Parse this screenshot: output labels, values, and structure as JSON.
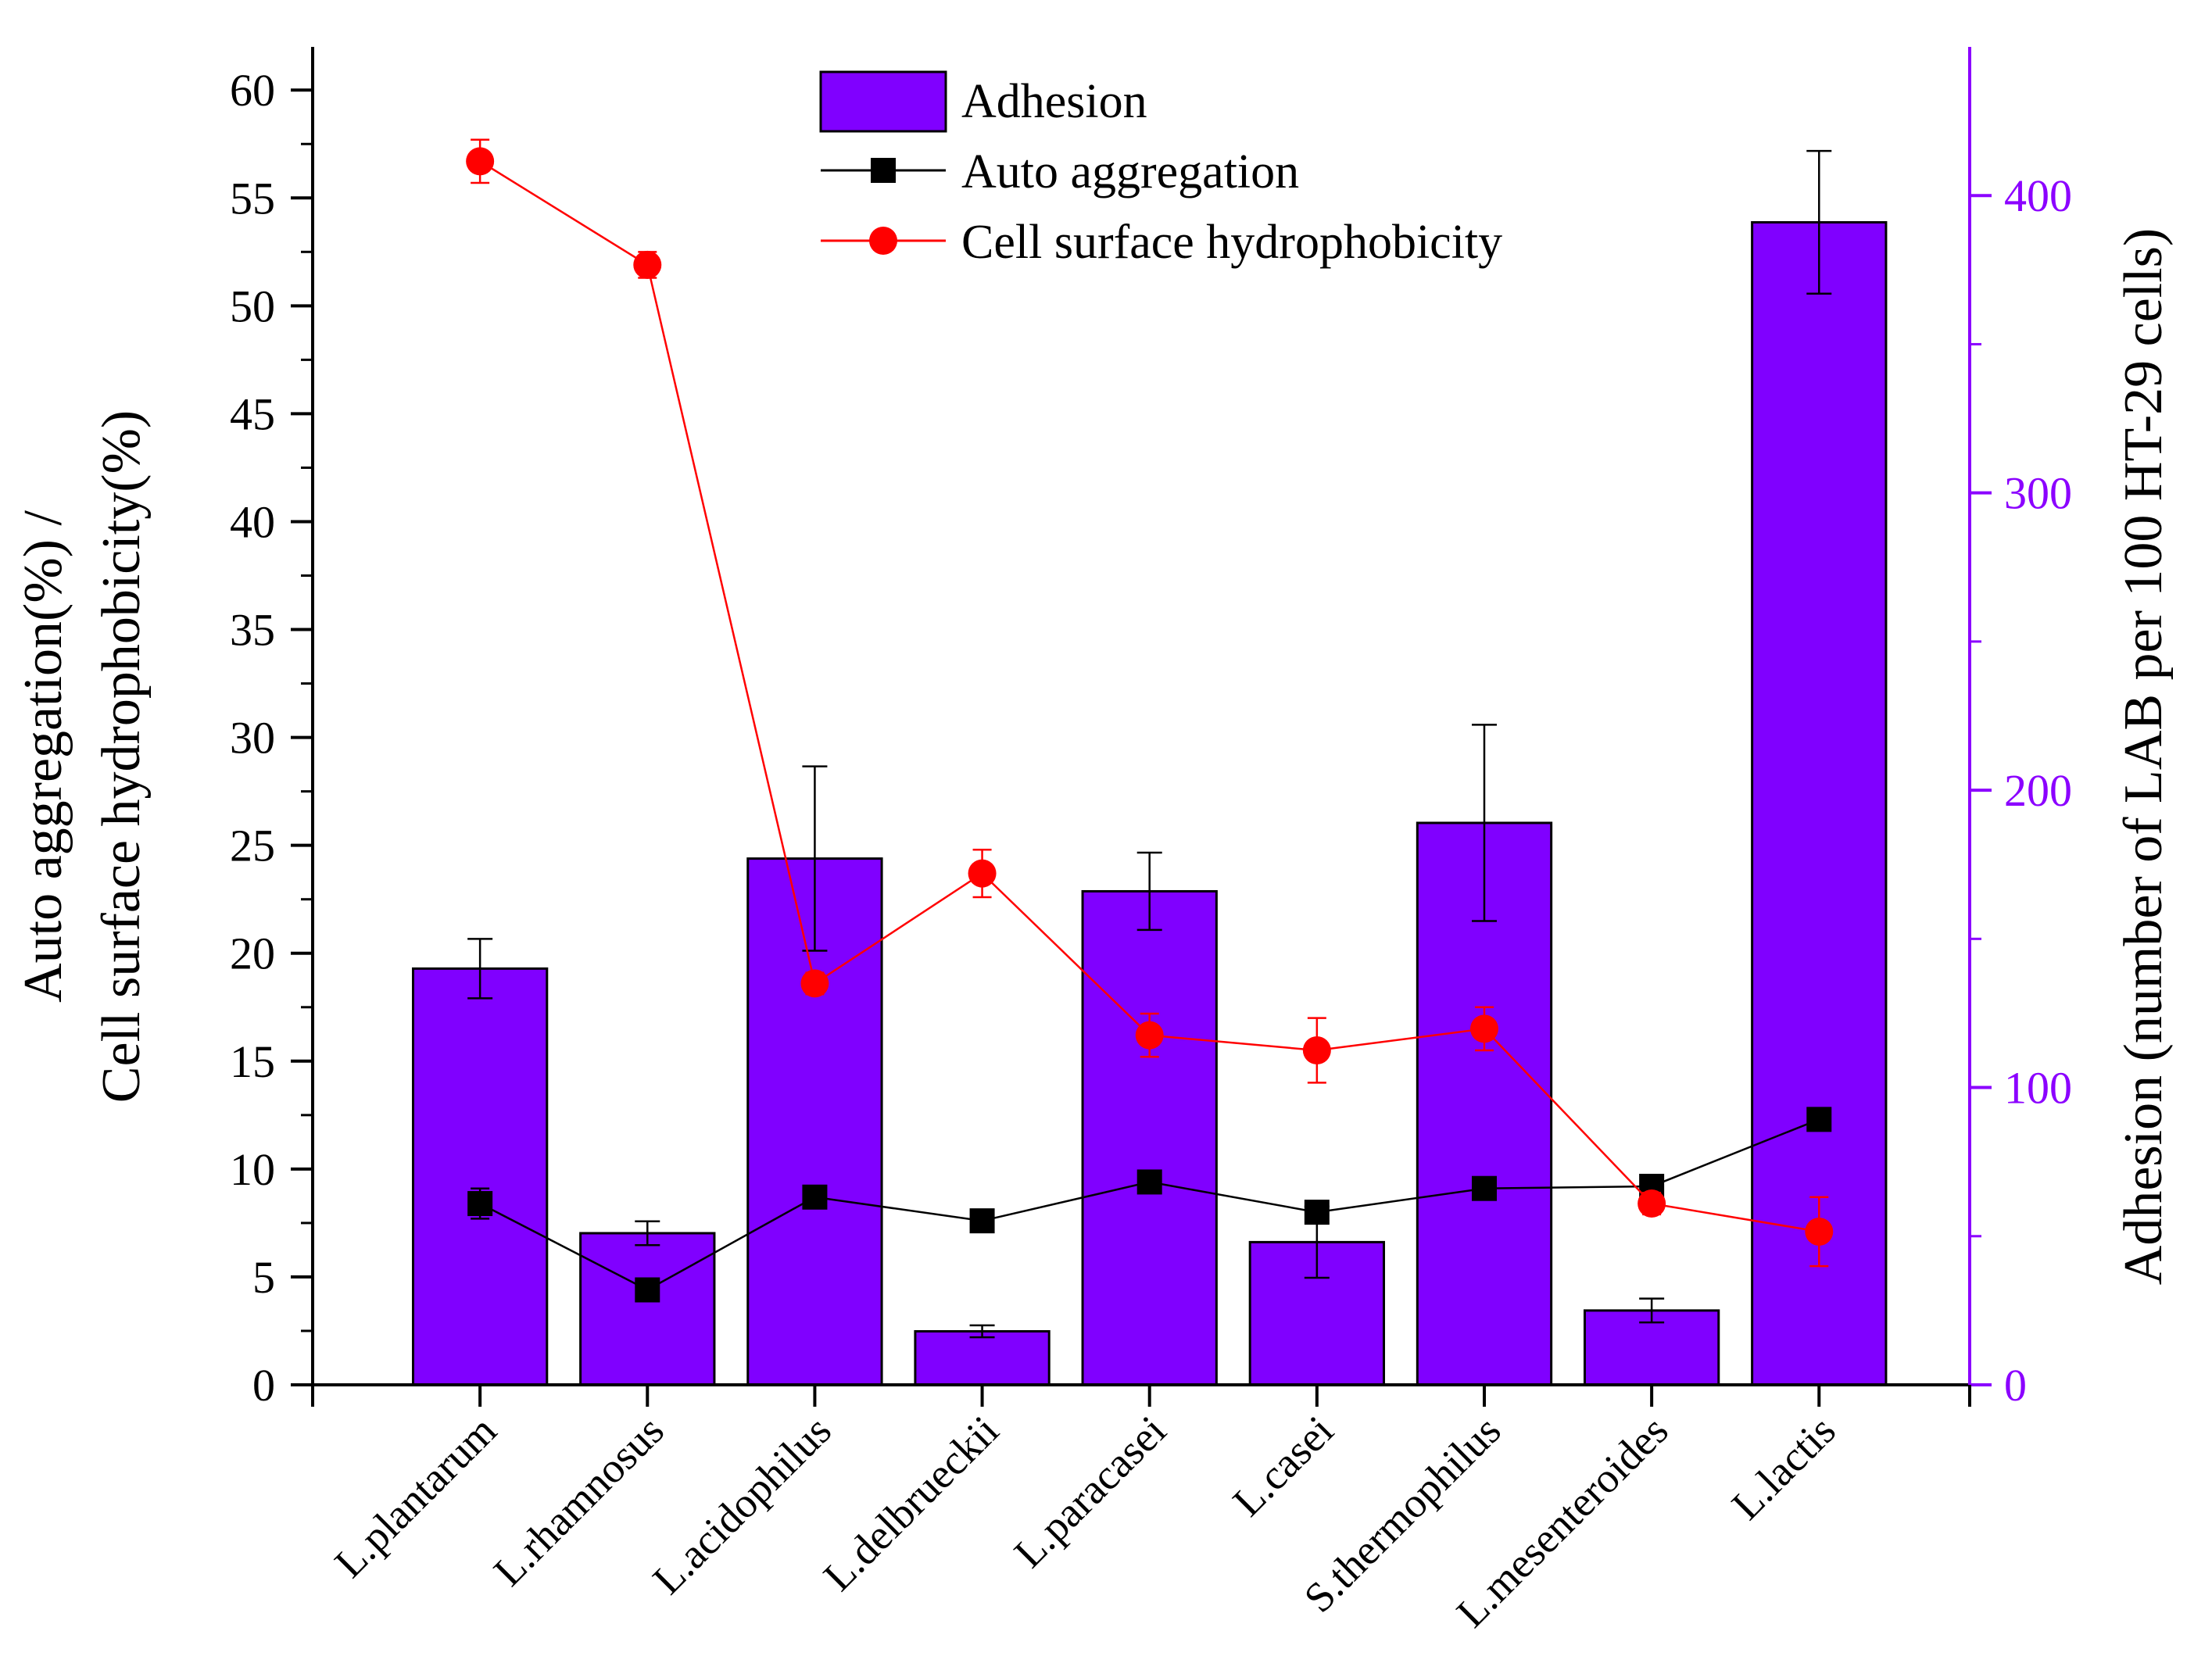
{
  "chart_data": {
    "type": "bar+line",
    "categories": [
      "L.plantarum",
      "L.rhamnosus",
      "L.acidophilus",
      "L.delbrueckii",
      "L.paracasei",
      "L.casei",
      "S.thermophilus",
      "L.mesenteroides",
      "L.lactis"
    ],
    "y_left": {
      "label_line1": "Auto aggregation(%) /",
      "label_line2": "Cell surface hydrophobicity(%)",
      "ylim": [
        0,
        62
      ],
      "ticks": [
        0,
        5,
        10,
        15,
        20,
        25,
        30,
        35,
        40,
        45,
        50,
        55,
        60
      ]
    },
    "y_right": {
      "label": "Adhesion (number of LAB per 100 HT-29 cells)",
      "ylim": [
        0,
        450
      ],
      "ticks": [
        0,
        100,
        200,
        300,
        400
      ],
      "color": "#8B00FF"
    },
    "series": [
      {
        "name": "Adhesion",
        "kind": "bar",
        "axis": "right",
        "color": "#8000FF",
        "values": [
          140,
          51,
          177,
          18,
          166,
          48,
          189,
          25,
          391
        ],
        "errors": [
          10,
          4,
          31,
          2,
          13,
          12,
          33,
          4,
          24
        ]
      },
      {
        "name": "Auto aggregation",
        "kind": "line",
        "axis": "left",
        "color": "#000000",
        "marker": "square",
        "values": [
          8.4,
          4.4,
          8.7,
          7.6,
          9.4,
          8.0,
          9.1,
          9.2,
          12.3
        ],
        "errors": [
          0.7,
          0.3,
          0.4,
          0.3,
          0.4,
          0.3,
          0.3,
          0.3,
          0.4
        ]
      },
      {
        "name": "Cell surface hydrophobicity",
        "kind": "line",
        "axis": "left",
        "color": "#FF0000",
        "marker": "circle",
        "values": [
          56.7,
          51.9,
          18.6,
          23.7,
          16.2,
          15.5,
          16.5,
          8.4,
          7.1
        ],
        "errors": [
          1.0,
          0.6,
          0.5,
          1.1,
          1.0,
          1.5,
          1.0,
          0.5,
          1.6
        ]
      }
    ],
    "legend": [
      "Adhesion",
      "Auto aggregation",
      "Cell surface hydrophobicity"
    ],
    "legend_position": "top-center"
  }
}
